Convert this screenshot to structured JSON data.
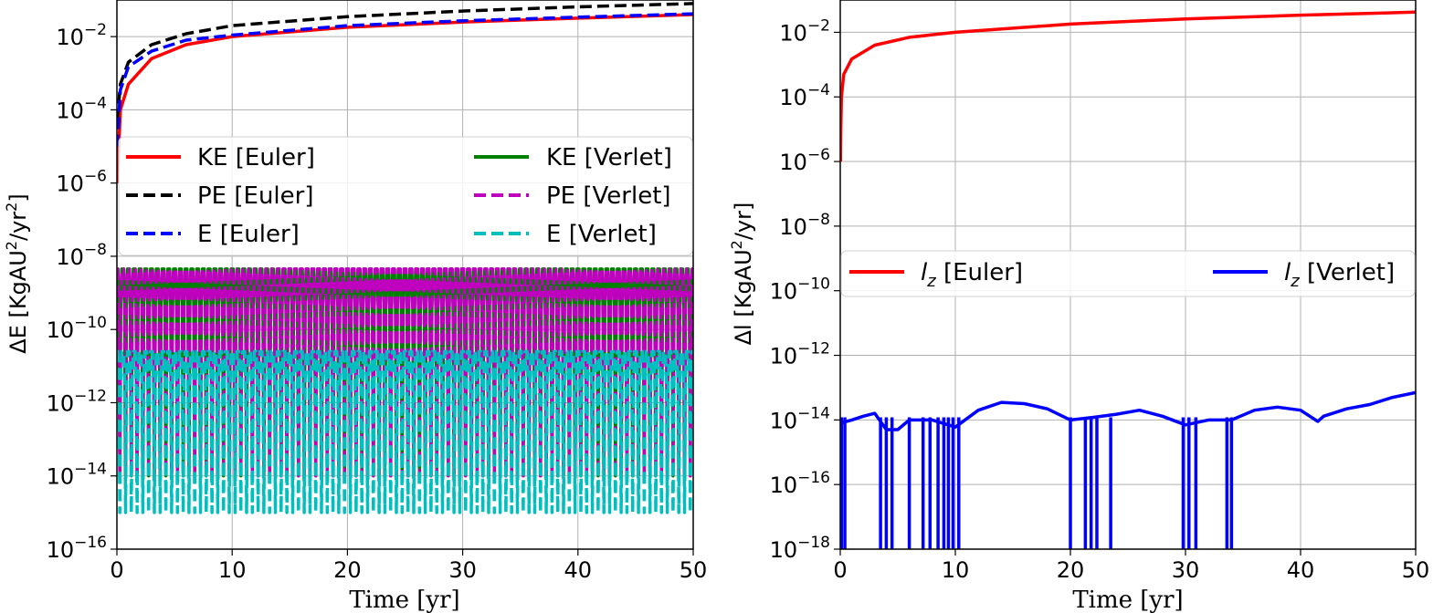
{
  "chart_data": [
    {
      "type": "line",
      "xlabel": "Time [yr]",
      "ylabel": "ΔE [KgAU²/yr²]",
      "ylabel_main": "ΔE [KgAU",
      "ylabel_mid": "/yr",
      "ylabel_end": "]",
      "ylabel_sup": "2",
      "xlim": [
        0,
        50
      ],
      "ylim_log10": [
        -16,
        -1
      ],
      "yscale": "log",
      "grid": true,
      "legend": "upper middle, 2 columns",
      "x_ticks": [
        "0",
        "10",
        "20",
        "30",
        "40",
        "50"
      ],
      "y_ticks": [
        {
          "base": "10",
          "exp": "−16"
        },
        {
          "base": "10",
          "exp": "−14"
        },
        {
          "base": "10",
          "exp": "−12"
        },
        {
          "base": "10",
          "exp": "−10"
        },
        {
          "base": "10",
          "exp": "−8"
        },
        {
          "base": "10",
          "exp": "−6"
        },
        {
          "base": "10",
          "exp": "−4"
        },
        {
          "base": "10",
          "exp": "−2"
        }
      ],
      "series": [
        {
          "name": "KE [Euler]",
          "color": "#ff0000",
          "dash": "solid",
          "x": [
            0.02,
            0.3,
            1,
            3,
            6,
            10,
            20,
            30,
            40,
            50
          ],
          "y": [
            1e-06,
            0.0001,
            0.0005,
            0.0025,
            0.006,
            0.01,
            0.018,
            0.025,
            0.032,
            0.04
          ]
        },
        {
          "name": "PE [Euler]",
          "color": "#000000",
          "dash": "dashed",
          "x": [
            0.02,
            0.3,
            1,
            3,
            6,
            10,
            20,
            30,
            40,
            50
          ],
          "y": [
            5e-05,
            0.0005,
            0.002,
            0.006,
            0.012,
            0.02,
            0.035,
            0.05,
            0.065,
            0.08
          ]
        },
        {
          "name": "E [Euler]",
          "color": "#0000ff",
          "dash": "dashed",
          "x": [
            0.02,
            0.3,
            1,
            3,
            6,
            10,
            20,
            30,
            40,
            50
          ],
          "y": [
            1e-05,
            0.00035,
            0.0015,
            0.004,
            0.008,
            0.011,
            0.02,
            0.027,
            0.034,
            0.042
          ]
        },
        {
          "name": "KE [Verlet]",
          "color": "#008000",
          "dash": "solid",
          "x": [
            0,
            50
          ],
          "y_peak": 4.5e-09,
          "y_trough": 1e-14,
          "period": 1.0
        },
        {
          "name": "PE [Verlet]",
          "color": "#bf00bf",
          "dash": "dashed",
          "x": [
            0,
            50
          ],
          "y_peak": 4.5e-09,
          "y_trough": 1e-14,
          "period": 1.0
        },
        {
          "name": "E [Verlet]",
          "color": "#00bfbf",
          "dash": "dashed",
          "x": [
            0,
            50
          ],
          "y_peak": 2.5e-11,
          "y_trough": 1e-15,
          "period": 1.0
        }
      ]
    },
    {
      "type": "line",
      "xlabel": "Time [yr]",
      "ylabel": "Δl [KgAU²/yr]",
      "ylabel_main": "Δl [KgAU",
      "ylabel_end": "/yr]",
      "ylabel_sup": "2",
      "xlim": [
        0,
        50
      ],
      "ylim_log10": [
        -18,
        -1
      ],
      "yscale": "log",
      "grid": true,
      "legend": "middle, 2 columns",
      "x_ticks": [
        "0",
        "10",
        "20",
        "30",
        "40",
        "50"
      ],
      "y_ticks": [
        {
          "base": "10",
          "exp": "−18"
        },
        {
          "base": "10",
          "exp": "−16"
        },
        {
          "base": "10",
          "exp": "−14"
        },
        {
          "base": "10",
          "exp": "−12"
        },
        {
          "base": "10",
          "exp": "−10"
        },
        {
          "base": "10",
          "exp": "−8"
        },
        {
          "base": "10",
          "exp": "−6"
        },
        {
          "base": "10",
          "exp": "−4"
        },
        {
          "base": "10",
          "exp": "−2"
        }
      ],
      "series": [
        {
          "name": "l_z [Euler]",
          "label_main": "l",
          "label_sub": "z",
          "label_rest": " [Euler]",
          "color": "#ff0000",
          "dash": "solid",
          "x": [
            0.02,
            0.05,
            0.1,
            0.3,
            1,
            3,
            6,
            10,
            20,
            30,
            40,
            50
          ],
          "y": [
            1e-06,
            1e-05,
            0.0001,
            0.0005,
            0.0015,
            0.004,
            0.007,
            0.01,
            0.018,
            0.026,
            0.034,
            0.042
          ]
        },
        {
          "name": "l_z [Verlet]",
          "label_main": "l",
          "label_sub": "z",
          "label_rest": " [Verlet]",
          "color": "#0000ff",
          "dash": "solid",
          "x": [
            0,
            1,
            2,
            3,
            4,
            5,
            6,
            8,
            10,
            12,
            14,
            16,
            18,
            20,
            22,
            24,
            26,
            28,
            30,
            32,
            34,
            36,
            38,
            40,
            41.5,
            42,
            44,
            46,
            48,
            50
          ],
          "y": [
            8e-15,
            1e-14,
            1.3e-14,
            1.6e-14,
            5e-15,
            5e-15,
            1e-14,
            1e-14,
            6e-15,
            2e-14,
            3.5e-14,
            3.2e-14,
            2.2e-14,
            1e-14,
            1.2e-14,
            1.5e-14,
            2e-14,
            1.3e-14,
            7e-15,
            1e-14,
            1e-14,
            2e-14,
            2.5e-14,
            2e-14,
            9e-15,
            1.3e-14,
            2.2e-14,
            3e-14,
            5e-14,
            7e-14
          ],
          "dips_x": [
            0.1,
            0.4,
            3.5,
            4.0,
            4.5,
            6.0,
            7.2,
            7.8,
            8.5,
            9.0,
            9.4,
            9.8,
            10.3,
            20.0,
            21.3,
            21.8,
            22.3,
            23.5,
            29.8,
            30.3,
            30.9,
            33.6,
            34.0
          ]
        }
      ]
    }
  ]
}
